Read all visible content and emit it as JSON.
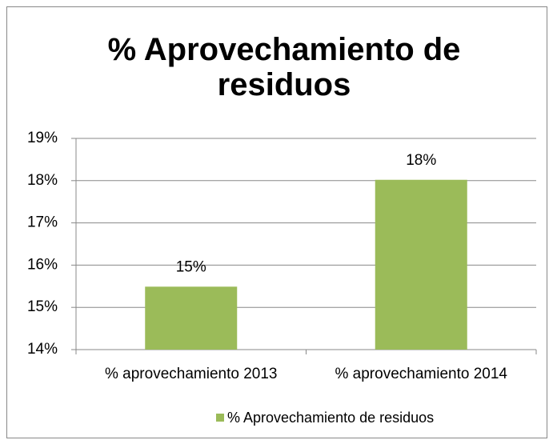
{
  "chart_data": {
    "type": "bar",
    "title": "% Aprovechamiento de residuos",
    "categories": [
      "% aprovechamiento 2013",
      "% aprovechamiento 2014"
    ],
    "series": [
      {
        "name": "% Aprovechamiento de residuos",
        "color": "#9bbb59",
        "values": [
          15.49,
          18.02
        ],
        "value_labels": [
          "15%",
          "18%"
        ]
      }
    ],
    "ylim": [
      14,
      19
    ],
    "yticks": [
      {
        "value": 14,
        "label": "14%"
      },
      {
        "value": 15,
        "label": "15%"
      },
      {
        "value": 16,
        "label": "16%"
      },
      {
        "value": 17,
        "label": "17%"
      },
      {
        "value": 18,
        "label": "18%"
      },
      {
        "value": 19,
        "label": "19%"
      }
    ],
    "grid": true,
    "legend": "bottom"
  }
}
